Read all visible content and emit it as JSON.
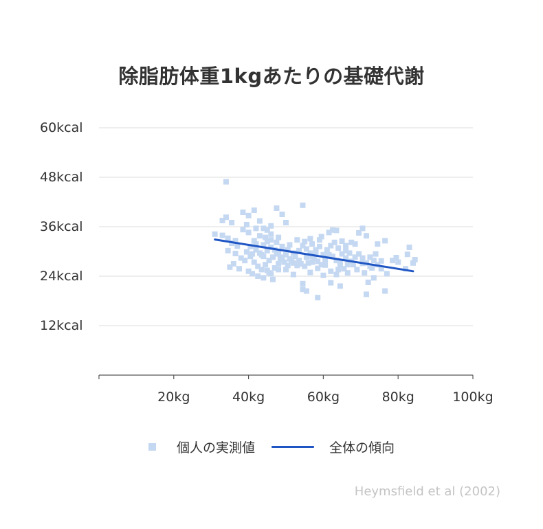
{
  "colors": {
    "title": "#333333",
    "axis_text": "#333333",
    "grid": "#e4e4e4",
    "axis_line": "#555555",
    "points": "#c5d8f2",
    "trend": "#1f56c4",
    "source": "#c4c4c4"
  },
  "chart_data": {
    "type": "scatter",
    "title": "除脂肪体重1kgあたりの基礎代謝",
    "xlabel": "",
    "ylabel": "",
    "xlim": [
      0,
      100
    ],
    "ylim": [
      0,
      60
    ],
    "x_ticks": [
      0,
      20,
      40,
      60,
      80,
      100
    ],
    "x_tick_labels": [
      "",
      "20kg",
      "40kg",
      "60kg",
      "80kg",
      "100kg"
    ],
    "y_ticks": [
      12,
      24,
      36,
      48,
      60
    ],
    "y_tick_labels": [
      "12kcal",
      "24kcal",
      "36kcal",
      "48kcal",
      "60kcal"
    ],
    "grid": true,
    "legend_position": "bottom",
    "series": [
      {
        "name": "個人の実測値",
        "kind": "scatter",
        "color": "#c5d8f2",
        "points": [
          [
            34,
            46.9
          ],
          [
            54.5,
            41.2
          ],
          [
            47.5,
            40.5
          ],
          [
            41.5,
            40
          ],
          [
            38.5,
            39.5
          ],
          [
            40,
            38.7
          ],
          [
            34,
            38.3
          ],
          [
            33,
            37.5
          ],
          [
            35.5,
            37
          ],
          [
            39.5,
            36.5
          ],
          [
            49,
            39
          ],
          [
            50,
            37
          ],
          [
            43,
            37.4
          ],
          [
            46,
            36.2
          ],
          [
            44,
            35.6
          ],
          [
            38.5,
            35.3
          ],
          [
            31,
            34.2
          ],
          [
            33,
            33.9
          ],
          [
            34.5,
            33.2
          ],
          [
            36.5,
            32.6
          ],
          [
            35.5,
            32
          ],
          [
            37,
            31.3
          ],
          [
            34.5,
            30.2
          ],
          [
            36.5,
            29.5
          ],
          [
            38,
            28.4
          ],
          [
            36,
            27
          ],
          [
            35,
            26.2
          ],
          [
            37.5,
            25.8
          ],
          [
            40,
            25.2
          ],
          [
            41,
            24.6
          ],
          [
            42.5,
            24
          ],
          [
            44,
            23.6
          ],
          [
            46.5,
            23.2
          ],
          [
            45.5,
            24.8
          ],
          [
            48,
            25.6
          ],
          [
            52,
            24.4
          ],
          [
            54.5,
            22.2
          ],
          [
            54.5,
            20.8
          ],
          [
            55.5,
            20.4
          ],
          [
            58.5,
            18.8
          ],
          [
            62,
            22.4
          ],
          [
            64.5,
            21.6
          ],
          [
            71.5,
            19.6
          ],
          [
            72,
            22.5
          ],
          [
            76.5,
            20.4
          ],
          [
            73.5,
            23.6
          ],
          [
            77,
            24.6
          ],
          [
            82,
            25.8
          ],
          [
            84,
            27.2
          ],
          [
            84.5,
            28
          ],
          [
            82.5,
            29.3
          ],
          [
            83,
            31
          ],
          [
            79.5,
            28.5
          ],
          [
            78.5,
            27.8
          ],
          [
            80,
            27.4
          ],
          [
            76.5,
            32.6
          ],
          [
            74.5,
            31.8
          ],
          [
            70.5,
            35.6
          ],
          [
            69.5,
            34.5
          ],
          [
            71.5,
            33.8
          ],
          [
            62.5,
            35.2
          ],
          [
            63.5,
            35.1
          ],
          [
            61.5,
            34.6
          ],
          [
            59.5,
            33.6
          ],
          [
            56.5,
            33.1
          ],
          [
            65,
            32.5
          ],
          [
            67.5,
            32.2
          ],
          [
            68.5,
            31.8
          ],
          [
            66,
            30.2
          ],
          [
            64.5,
            27.5
          ],
          [
            60.5,
            26.7
          ],
          [
            58.5,
            25.9
          ],
          [
            56.5,
            24.9
          ],
          [
            63.5,
            24.4
          ],
          [
            66.5,
            24.8
          ],
          [
            69,
            25.6
          ],
          [
            70.5,
            27.1
          ],
          [
            72.5,
            28.6
          ],
          [
            74,
            29.4
          ],
          [
            75.5,
            27.7
          ],
          [
            73,
            26
          ],
          [
            71,
            24.8
          ],
          [
            68,
            26.8
          ],
          [
            66,
            28.4
          ],
          [
            67,
            29.6
          ],
          [
            64,
            30.8
          ],
          [
            62,
            31.4
          ],
          [
            60,
            29.2
          ],
          [
            58,
            29.8
          ],
          [
            57,
            27.4
          ],
          [
            55.5,
            28.6
          ],
          [
            53.5,
            27.8
          ],
          [
            52,
            29.6
          ],
          [
            50.5,
            30.4
          ],
          [
            49,
            31.2
          ],
          [
            47.5,
            32.2
          ],
          [
            46,
            32.8
          ],
          [
            44.5,
            33.4
          ],
          [
            43,
            33.8
          ],
          [
            41.5,
            32.6
          ],
          [
            40.5,
            31.2
          ],
          [
            39.5,
            29.9
          ],
          [
            40.5,
            28.8
          ],
          [
            41.5,
            27.4
          ],
          [
            42.5,
            26.4
          ],
          [
            43.5,
            25.6
          ],
          [
            44.5,
            26.8
          ],
          [
            45.5,
            27.8
          ],
          [
            46.5,
            28.6
          ],
          [
            47.5,
            29.4
          ],
          [
            48.5,
            28.2
          ],
          [
            49.5,
            27.4
          ],
          [
            50.5,
            26.6
          ],
          [
            51.5,
            27.8
          ],
          [
            52.5,
            28.8
          ],
          [
            53.5,
            30.2
          ],
          [
            54.5,
            31.4
          ],
          [
            55.5,
            30.6
          ],
          [
            56.5,
            29.6
          ],
          [
            57.5,
            28.4
          ],
          [
            58.5,
            27.6
          ],
          [
            59.5,
            26.8
          ],
          [
            60.5,
            28
          ],
          [
            61.5,
            29.2
          ],
          [
            62.5,
            28.8
          ],
          [
            63.5,
            27.8
          ],
          [
            64.5,
            26.6
          ],
          [
            65.5,
            25.8
          ],
          [
            66.5,
            26.8
          ],
          [
            67.5,
            27.6
          ],
          [
            68.5,
            28.6
          ],
          [
            69.5,
            29.4
          ],
          [
            70.5,
            28.4
          ],
          [
            71.5,
            27.2
          ],
          [
            72.5,
            26.4
          ],
          [
            73.5,
            27.8
          ],
          [
            74.5,
            26.8
          ],
          [
            75.5,
            25.8
          ],
          [
            42,
            30.4
          ],
          [
            43,
            29.6
          ],
          [
            44,
            28.8
          ],
          [
            45,
            30.2
          ],
          [
            46,
            31
          ],
          [
            47,
            30.4
          ],
          [
            48,
            29.6
          ],
          [
            49,
            28.6
          ],
          [
            50,
            29.2
          ],
          [
            51,
            28.2
          ],
          [
            52,
            27.2
          ],
          [
            53,
            26.6
          ],
          [
            54,
            27
          ],
          [
            55,
            26.4
          ],
          [
            56,
            27.2
          ],
          [
            57,
            28.8
          ],
          [
            58,
            30.4
          ],
          [
            59,
            31.2
          ],
          [
            44,
            31.6
          ],
          [
            45,
            32.4
          ],
          [
            42,
            31.8
          ],
          [
            43.5,
            29.2
          ],
          [
            41,
            29.4
          ],
          [
            39,
            27.8
          ],
          [
            45,
            25.4
          ],
          [
            47,
            26
          ],
          [
            48,
            27
          ],
          [
            50,
            25.6
          ],
          [
            46,
            24.6
          ],
          [
            60,
            24.2
          ],
          [
            62,
            25.2
          ],
          [
            64,
            25.6
          ],
          [
            65,
            29.4
          ],
          [
            66,
            31.4
          ],
          [
            61,
            30.4
          ],
          [
            63,
            32.2
          ],
          [
            57,
            31.8
          ],
          [
            59,
            32.8
          ],
          [
            55,
            32.4
          ],
          [
            53,
            32.8
          ],
          [
            51,
            31.6
          ],
          [
            48,
            33.4
          ],
          [
            46,
            34.2
          ],
          [
            45,
            35.2
          ],
          [
            42,
            35.6
          ],
          [
            40,
            34.6
          ]
        ]
      },
      {
        "name": "全体の傾向",
        "kind": "line",
        "color": "#1f56c4",
        "points": [
          [
            31,
            32.9
          ],
          [
            84,
            25.2
          ]
        ]
      }
    ],
    "source": "Heymsfield et al (2002)"
  }
}
